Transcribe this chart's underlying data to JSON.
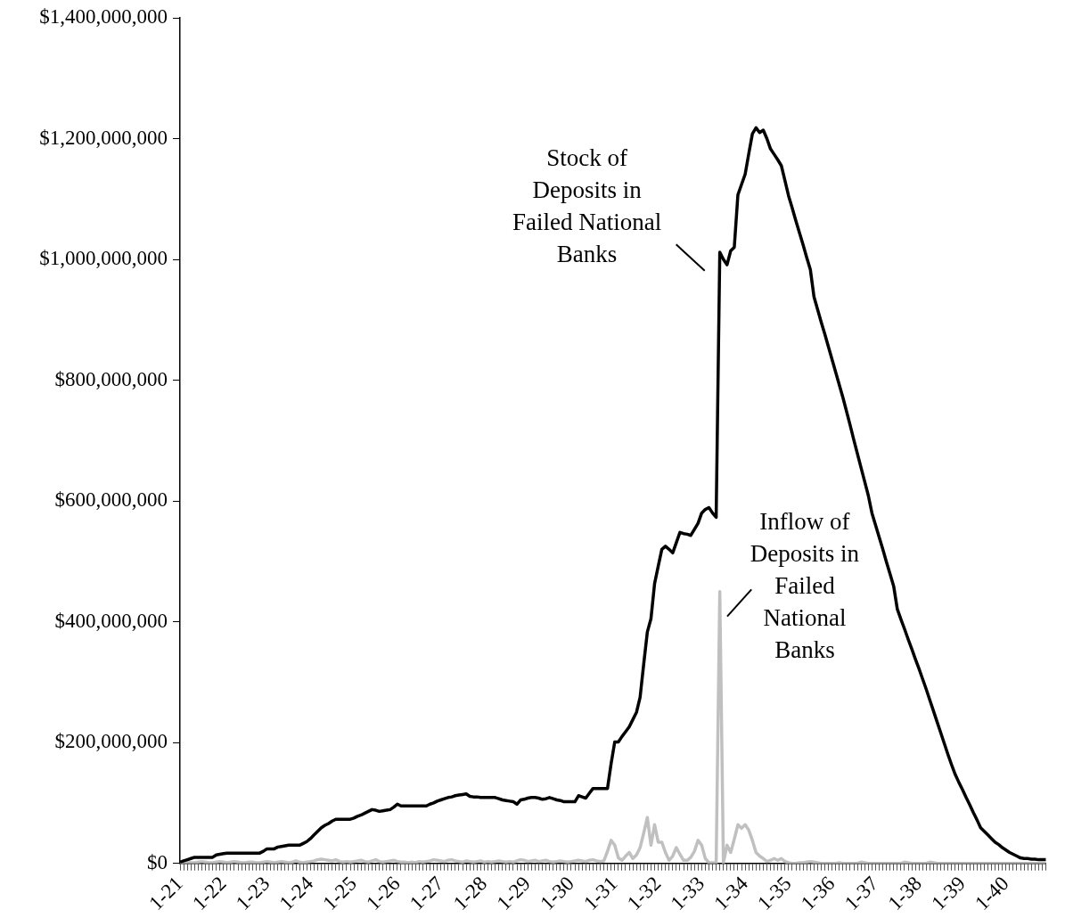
{
  "chart_data": {
    "type": "line",
    "categories": [
      "1-21",
      null,
      null,
      null,
      null,
      null,
      null,
      null,
      null,
      null,
      null,
      null,
      "1-22",
      null,
      null,
      null,
      null,
      null,
      null,
      null,
      null,
      null,
      null,
      null,
      "1-23",
      null,
      null,
      null,
      null,
      null,
      null,
      null,
      null,
      null,
      null,
      null,
      "1-24",
      null,
      null,
      null,
      null,
      null,
      null,
      null,
      null,
      null,
      null,
      null,
      "1-25",
      null,
      null,
      null,
      null,
      null,
      null,
      null,
      null,
      null,
      null,
      null,
      "1-26",
      null,
      null,
      null,
      null,
      null,
      null,
      null,
      null,
      null,
      null,
      null,
      "1-27",
      null,
      null,
      null,
      null,
      null,
      null,
      null,
      null,
      null,
      null,
      null,
      "1-28",
      null,
      null,
      null,
      null,
      null,
      null,
      null,
      null,
      null,
      null,
      null,
      "1-29",
      null,
      null,
      null,
      null,
      null,
      null,
      null,
      null,
      null,
      null,
      null,
      "1-30",
      null,
      null,
      null,
      null,
      null,
      null,
      null,
      null,
      null,
      null,
      null,
      "1-31",
      null,
      null,
      null,
      null,
      null,
      null,
      null,
      null,
      null,
      null,
      null,
      "1-32",
      null,
      null,
      null,
      null,
      null,
      null,
      null,
      null,
      null,
      null,
      null,
      "1-33",
      null,
      null,
      null,
      null,
      null,
      null,
      null,
      null,
      null,
      null,
      null,
      "1-34",
      null,
      null,
      null,
      null,
      null,
      null,
      null,
      null,
      null,
      null,
      null,
      "1-35",
      null,
      null,
      null,
      null,
      null,
      null,
      null,
      null,
      null,
      null,
      null,
      "1-36",
      null,
      null,
      null,
      null,
      null,
      null,
      null,
      null,
      null,
      null,
      null,
      "1-37",
      null,
      null,
      null,
      null,
      null,
      null,
      null,
      null,
      null,
      null,
      null,
      "1-38",
      null,
      null,
      null,
      null,
      null,
      null,
      null,
      null,
      null,
      null,
      null,
      "1-39",
      null,
      null,
      null,
      null,
      null,
      null,
      null,
      null,
      null,
      null,
      null,
      "1-40",
      null,
      null,
      null,
      null,
      null,
      null,
      null,
      null,
      null,
      null,
      null
    ],
    "series": [
      {
        "name": "Stock of\nDeposits in\nFailed National\nBanks",
        "color": "#000000",
        "values": [
          2000000.0,
          4000000.0,
          6000000.0,
          8000000.0,
          10000000.0,
          10000000.0,
          10000000.0,
          10000000.0,
          10000000.0,
          10000000.0,
          14000000.0,
          15000000.0,
          16000000.0,
          17000000.0,
          17000000.0,
          17000000.0,
          17000000.0,
          17000000.0,
          17000000.0,
          17000000.0,
          17000000.0,
          17000000.0,
          17000000.0,
          20000000.0,
          24000000.0,
          24000000.0,
          24000000.0,
          27000000.0,
          28000000.0,
          29000000.0,
          30000000.0,
          30000000.0,
          30000000.0,
          30000000.0,
          33000000.0,
          36000000.0,
          41000000.0,
          47000000.0,
          53000000.0,
          59000000.0,
          63000000.0,
          66000000.0,
          70000000.0,
          73000000.0,
          73000000.0,
          73000000.0,
          73000000.0,
          73000000.0,
          75000000.0,
          78000000.0,
          80000000.0,
          83000000.0,
          86000000.0,
          89000000.0,
          88000000.0,
          86000000.0,
          87000000.0,
          88000000.0,
          89000000.0,
          93000000.0,
          98000000.0,
          95000000.0,
          95000000.0,
          95000000.0,
          95000000.0,
          95000000.0,
          95000000.0,
          95000000.0,
          95000000.0,
          98000000.0,
          100000000.0,
          103000000.0,
          105000000.0,
          107000000.0,
          109000000.0,
          110000000.0,
          112000000.0,
          113000000.0,
          114000000.0,
          115000000.0,
          111000000.0,
          110000000.0,
          110000000.0,
          109000000.0,
          109000000.0,
          109000000.0,
          109000000.0,
          109000000.0,
          107000000.0,
          105000000.0,
          104000000.0,
          103000000.0,
          102000000.0,
          98000000.0,
          105000000.0,
          106000000.0,
          108000000.0,
          109000000.0,
          109000000.0,
          108000000.0,
          106000000.0,
          107000000.0,
          109000000.0,
          107000000.0,
          105000000.0,
          104000000.0,
          102000000.0,
          102000000.0,
          102000000.0,
          102000000.0,
          112000000.0,
          110000000.0,
          108000000.0,
          116000000.0,
          124000000.0,
          124000000.0,
          124000000.0,
          124000000.0,
          124000000.0,
          165000000.0,
          201000000.0,
          201000000.0,
          210000000.0,
          218000000.0,
          226000000.0,
          238000000.0,
          250000000.0,
          275000000.0,
          330000000.0,
          383000000.0,
          405000000.0,
          463000000.0,
          492000000.0,
          520000000.0,
          525000000.0,
          520000000.0,
          514000000.0,
          531000000.0,
          548000000.0,
          546000000.0,
          545000000.0,
          543000000.0,
          553000000.0,
          563000000.0,
          580000000.0,
          586000000.0,
          589000000.0,
          580000000.0,
          573000000.0,
          1012000000.0,
          1000000000.0,
          991000000.0,
          1014000000.0,
          1020000000.0,
          1107000000.0,
          1124000000.0,
          1141000000.0,
          1175000000.0,
          1208000000.0,
          1218000000.0,
          1210000000.0,
          1214000000.0,
          1200000000.0,
          1183000000.0,
          1174000000.0,
          1165000000.0,
          1155000000.0,
          1130000000.0,
          1105000000.0,
          1085000000.0,
          1064000000.0,
          1044000000.0,
          1024000000.0,
          1003000000.0,
          983000000.0,
          938000000.0,
          917000000.0,
          896000000.0,
          876000000.0,
          855000000.0,
          834000000.0,
          813000000.0,
          792000000.0,
          771000000.0,
          748000000.0,
          725000000.0,
          701000000.0,
          678000000.0,
          655000000.0,
          632000000.0,
          609000000.0,
          580000000.0,
          560000000.0,
          540000000.0,
          520000000.0,
          499000000.0,
          479000000.0,
          459000000.0,
          421000000.0,
          404000000.0,
          388000000.0,
          371000000.0,
          355000000.0,
          338000000.0,
          322000000.0,
          305000000.0,
          288000000.0,
          270000000.0,
          252000000.0,
          234000000.0,
          216000000.0,
          198000000.0,
          180000000.0,
          163000000.0,
          147000000.0,
          134000000.0,
          122000000.0,
          109000000.0,
          97000000.0,
          84000000.0,
          72000000.0,
          59000000.0,
          53000000.0,
          47000000.0,
          41000000.0,
          35000000.0,
          31000000.0,
          26000000.0,
          22000000.0,
          18000000.0,
          15000000.0,
          12000000.0,
          9000000.0,
          8000000.0,
          8000000.0,
          7000000.0,
          7000000.0,
          6000000.0,
          6000000.0,
          6000000.0
        ]
      },
      {
        "name": "Inflow of\nDeposits in\nFailed\nNational\nBanks",
        "color": "#c0c0c0",
        "values": [
          1000000.0,
          1000000.0,
          2000000.0,
          1000000.0,
          1000000.0,
          2000000.0,
          3000000.0,
          2000000.0,
          1000000.0,
          1000000.0,
          2000000.0,
          3000000.0,
          2000000.0,
          1000000.0,
          2000000.0,
          3000000.0,
          2000000.0,
          1000000.0,
          1000000.0,
          2000000.0,
          2000000.0,
          1000000.0,
          1000000.0,
          2000000.0,
          3000000.0,
          2000000.0,
          1000000.0,
          2000000.0,
          3000000.0,
          2000000.0,
          1000000.0,
          2000000.0,
          4000000.0,
          2000000.0,
          1000000.0,
          2000000.0,
          3000000.0,
          4000000.0,
          6000000.0,
          7000000.0,
          6000000.0,
          5000000.0,
          4000000.0,
          6000000.0,
          3000000.0,
          2000000.0,
          3000000.0,
          2000000.0,
          3000000.0,
          4000000.0,
          5000000.0,
          3000000.0,
          2000000.0,
          4000000.0,
          6000000.0,
          3000000.0,
          2000000.0,
          3000000.0,
          4000000.0,
          5000000.0,
          3000000.0,
          2000000.0,
          2000000.0,
          1000000.0,
          2000000.0,
          1000000.0,
          3000000.0,
          2000000.0,
          3000000.0,
          4000000.0,
          6000000.0,
          5000000.0,
          4000000.0,
          3000000.0,
          5000000.0,
          6000000.0,
          4000000.0,
          3000000.0,
          2000000.0,
          4000000.0,
          3000000.0,
          2000000.0,
          3000000.0,
          4000000.0,
          2000000.0,
          3000000.0,
          2000000.0,
          3000000.0,
          4000000.0,
          3000000.0,
          2000000.0,
          3000000.0,
          2000000.0,
          4000000.0,
          6000000.0,
          5000000.0,
          3000000.0,
          4000000.0,
          5000000.0,
          3000000.0,
          4000000.0,
          5000000.0,
          3000000.0,
          2000000.0,
          3000000.0,
          4000000.0,
          3000000.0,
          2000000.0,
          3000000.0,
          4000000.0,
          5000000.0,
          4000000.0,
          3000000.0,
          5000000.0,
          6000000.0,
          4000000.0,
          3000000.0,
          4000000.0,
          20000000.0,
          38000000.0,
          30000000.0,
          9000000.0,
          5000000.0,
          12000000.0,
          18000000.0,
          8000000.0,
          14000000.0,
          26000000.0,
          50000000.0,
          76000000.0,
          30000000.0,
          64000000.0,
          35000000.0,
          35000000.0,
          18000000.0,
          5000000.0,
          12000000.0,
          26000000.0,
          15000000.0,
          5000000.0,
          5000000.0,
          10000000.0,
          20000000.0,
          38000000.0,
          30000000.0,
          8000000.0,
          1000000.0,
          1000000.0,
          1000000.0,
          450000000.0,
          1000000.0,
          30000000.0,
          18000000.0,
          40000000.0,
          64000000.0,
          58000000.0,
          64000000.0,
          55000000.0,
          38000000.0,
          18000000.0,
          12000000.0,
          8000000.0,
          3000000.0,
          5000000.0,
          8000000.0,
          5000000.0,
          8000000.0,
          3000000.0,
          1000000.0,
          0,
          0,
          1000000.0,
          1000000.0,
          2000000.0,
          3000000.0,
          2000000.0,
          1000000.0,
          0,
          0,
          0,
          0,
          0,
          1000000.0,
          0,
          0,
          0,
          0,
          0,
          2000000.0,
          1000000.0,
          0,
          0,
          0,
          0,
          0,
          0,
          0,
          0,
          0,
          0,
          2000000.0,
          1000000.0,
          0,
          0,
          0,
          0,
          0,
          2000000.0,
          1000000.0,
          0,
          0,
          0,
          0,
          0,
          0,
          0,
          0,
          0,
          0,
          0,
          0,
          0,
          0,
          0,
          0,
          0,
          0,
          0,
          0,
          0,
          0,
          0,
          0,
          0,
          0,
          0,
          0,
          0,
          0,
          0
        ]
      }
    ],
    "ylim": [
      0,
      1400000000
    ],
    "yticks": [
      {
        "value": 0,
        "label": "$0"
      },
      {
        "value": 200000000,
        "label": "$200,000,000"
      },
      {
        "value": 400000000,
        "label": "$400,000,000"
      },
      {
        "value": 600000000,
        "label": "$600,000,000"
      },
      {
        "value": 800000000,
        "label": "$800,000,000"
      },
      {
        "value": 1000000000,
        "label": "$1,000,000,000"
      },
      {
        "value": 1200000000,
        "label": "$1,200,000,000"
      },
      {
        "value": 1400000000,
        "label": "$1,400,000,000"
      }
    ]
  }
}
